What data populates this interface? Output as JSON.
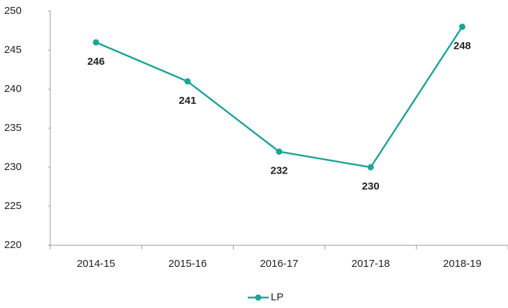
{
  "chart_data": {
    "type": "line",
    "categories": [
      "2014-15",
      "2015-16",
      "2016-17",
      "2017-18",
      "2018-19"
    ],
    "series": [
      {
        "name": "LP",
        "color": "#1ea397",
        "values": [
          246,
          241,
          232,
          230,
          248
        ]
      }
    ],
    "ylim": [
      220,
      250
    ],
    "yticks": [
      220,
      225,
      230,
      235,
      240,
      245,
      250
    ],
    "grid": false,
    "legend": "bottom",
    "data_labels": true
  }
}
